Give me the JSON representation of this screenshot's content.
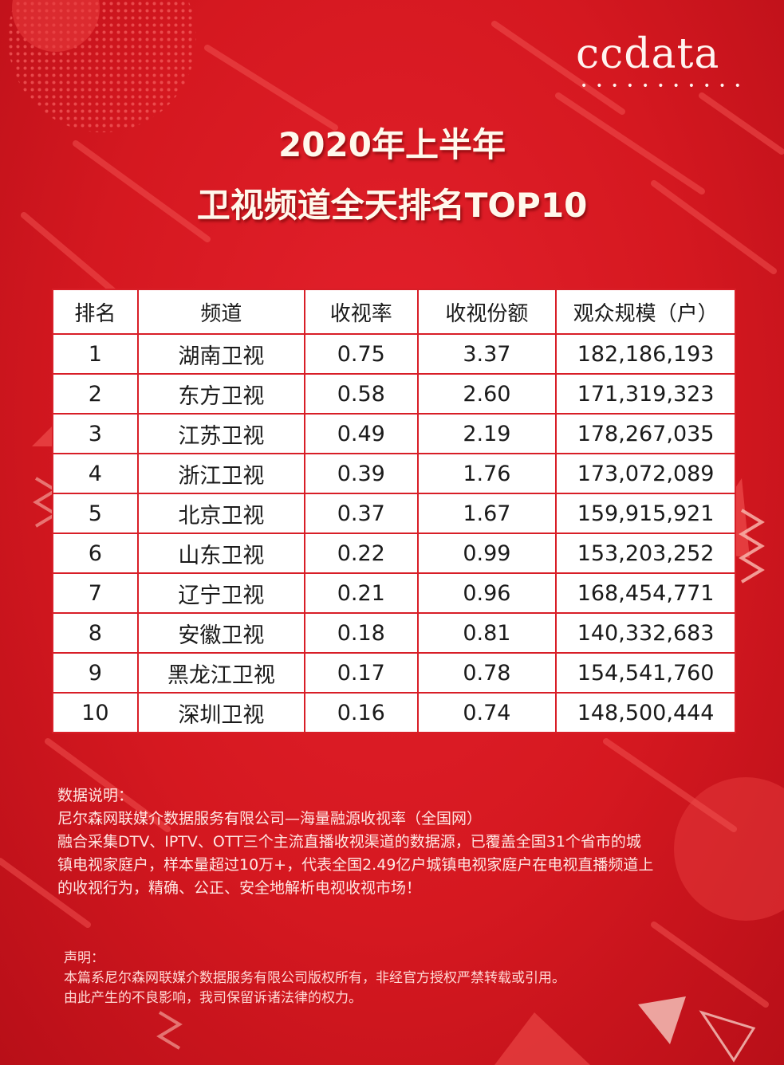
{
  "brand": {
    "name": "ccdata",
    "dots": "•••••••••••"
  },
  "title": {
    "line1": "2020年上半年",
    "line2": "卫视频道全天排名TOP10"
  },
  "table": {
    "headers": [
      "排名",
      "频道",
      "收视率",
      "收视份额",
      "观众规模（户）"
    ],
    "rows": [
      {
        "rank": "1",
        "channel": "湖南卫视",
        "rating": "0.75",
        "share": "3.37",
        "audience": "182,186,193"
      },
      {
        "rank": "2",
        "channel": "东方卫视",
        "rating": "0.58",
        "share": "2.60",
        "audience": "171,319,323"
      },
      {
        "rank": "3",
        "channel": "江苏卫视",
        "rating": "0.49",
        "share": "2.19",
        "audience": "178,267,035"
      },
      {
        "rank": "4",
        "channel": "浙江卫视",
        "rating": "0.39",
        "share": "1.76",
        "audience": "173,072,089"
      },
      {
        "rank": "5",
        "channel": "北京卫视",
        "rating": "0.37",
        "share": "1.67",
        "audience": "159,915,921"
      },
      {
        "rank": "6",
        "channel": "山东卫视",
        "rating": "0.22",
        "share": "0.99",
        "audience": "153,203,252"
      },
      {
        "rank": "7",
        "channel": "辽宁卫视",
        "rating": "0.21",
        "share": "0.96",
        "audience": "168,454,771"
      },
      {
        "rank": "8",
        "channel": "安徽卫视",
        "rating": "0.18",
        "share": "0.81",
        "audience": "140,332,683"
      },
      {
        "rank": "9",
        "channel": "黑龙江卫视",
        "rating": "0.17",
        "share": "0.78",
        "audience": "154,541,760"
      },
      {
        "rank": "10",
        "channel": "深圳卫视",
        "rating": "0.16",
        "share": "0.74",
        "audience": "148,500,444"
      }
    ]
  },
  "notes": {
    "heading": "数据说明：",
    "source": "尼尔森网联媒介数据服务有限公司—海量融源收视率（全国网）",
    "line1": "融合采集DTV、IPTV、OTT三个主流直播收视渠道的数据源，已覆盖全国31个省市的城",
    "line2": "镇电视家庭户，样本量超过10万+，代表全国2.49亿户城镇电视家庭户在电视直播频道上",
    "line3": "的收视行为，精确、公正、安全地解析电视收视市场！"
  },
  "disclaimer": {
    "heading": "声明：",
    "line1": "本篇系尼尔森网联媒介数据服务有限公司版权所有，非经官方授权严禁转载或引用。",
    "line2": "由此产生的不良影响，我司保留诉诸法律的权力。"
  },
  "colors": {
    "background": "#d51820",
    "table_border": "#d81e27",
    "title_text": "#fff8ec"
  }
}
